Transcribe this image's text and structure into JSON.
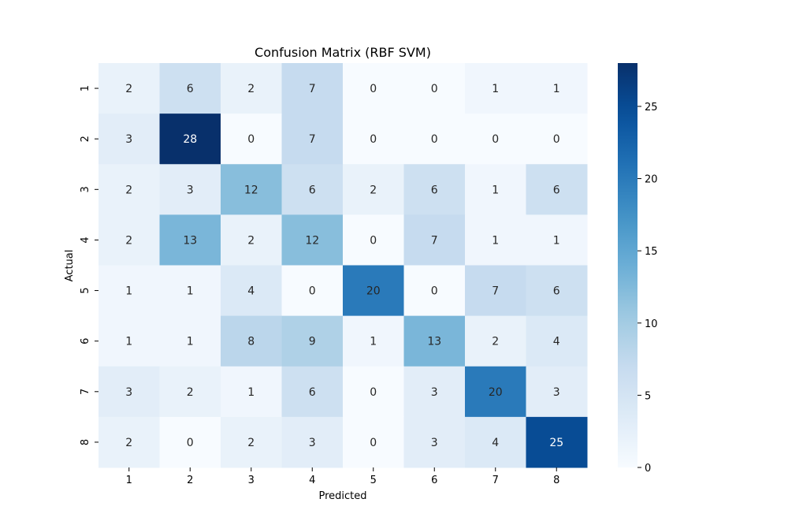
{
  "chart_data": {
    "type": "heatmap",
    "title": "Confusion Matrix (RBF SVM)",
    "xlabel": "Predicted",
    "ylabel": "Actual",
    "x_categories": [
      "1",
      "2",
      "3",
      "4",
      "5",
      "6",
      "7",
      "8"
    ],
    "y_categories": [
      "1",
      "2",
      "3",
      "4",
      "5",
      "6",
      "7",
      "8"
    ],
    "values": [
      [
        2,
        6,
        2,
        7,
        0,
        0,
        1,
        1
      ],
      [
        3,
        28,
        0,
        7,
        0,
        0,
        0,
        0
      ],
      [
        2,
        3,
        12,
        6,
        2,
        6,
        1,
        6
      ],
      [
        2,
        13,
        2,
        12,
        0,
        7,
        1,
        1
      ],
      [
        1,
        1,
        4,
        0,
        20,
        0,
        7,
        6
      ],
      [
        1,
        1,
        8,
        9,
        1,
        13,
        2,
        4
      ],
      [
        3,
        2,
        1,
        6,
        0,
        3,
        20,
        3
      ],
      [
        2,
        0,
        2,
        3,
        0,
        3,
        4,
        25
      ]
    ],
    "colormap": "Blues",
    "vmin": 0,
    "vmax": 28,
    "colorbar_ticks": [
      0,
      5,
      10,
      15,
      20,
      25
    ],
    "colorbar_tick_labels": [
      "0",
      "5",
      "10",
      "15",
      "20",
      "25"
    ]
  }
}
